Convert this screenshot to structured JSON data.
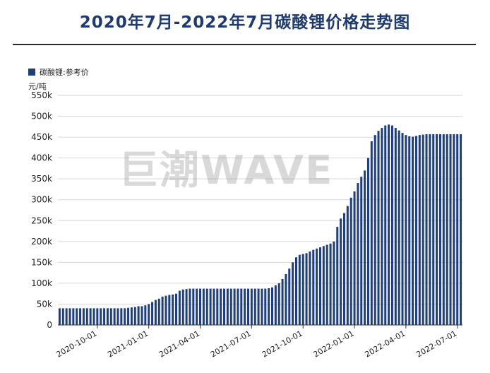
{
  "header": {
    "title": "2020年7月-2022年7月碳酸锂价格走势图"
  },
  "watermark": "巨潮WAVE",
  "chart_data": {
    "type": "bar",
    "ylabel": "元/吨",
    "ylim": [
      0,
      550000
    ],
    "y_ticks": [
      0,
      50000,
      100000,
      150000,
      200000,
      250000,
      300000,
      350000,
      400000,
      450000,
      500000,
      550000
    ],
    "y_tick_labels": [
      "0",
      "50k",
      "100k",
      "150k",
      "200k",
      "250k",
      "300k",
      "350k",
      "400k",
      "450k",
      "500k",
      "550k"
    ],
    "x_tick_labels": [
      "2020-10-01",
      "2021-01-01",
      "2021-04-01",
      "2021-07-01",
      "2021-10-01",
      "2022-01-01",
      "2022-04-01",
      "2022-07-01"
    ],
    "x_tick_positions": [
      11,
      26,
      41,
      56,
      71,
      86,
      101,
      116
    ],
    "grid": "horizontal",
    "legend_position": "top-left",
    "bar_color": "#1f3f7a",
    "series": [
      {
        "name": "碳酸锂:参考价",
        "values": [
          40000,
          40000,
          40000,
          40000,
          40000,
          40000,
          40000,
          40000,
          40000,
          40000,
          40000,
          40000,
          40000,
          40000,
          40000,
          40000,
          40000,
          40000,
          40000,
          40000,
          41000,
          42000,
          43000,
          45000,
          45000,
          47000,
          50000,
          55000,
          60000,
          63000,
          68000,
          70000,
          72000,
          73000,
          75000,
          82000,
          85000,
          86000,
          87000,
          87000,
          87000,
          87000,
          87000,
          87000,
          87000,
          87000,
          87000,
          87000,
          87000,
          87000,
          87000,
          87000,
          87000,
          87000,
          87000,
          87000,
          87000,
          87000,
          87000,
          87000,
          87000,
          88000,
          90000,
          95000,
          100000,
          110000,
          122000,
          135000,
          150000,
          162000,
          168000,
          170000,
          172000,
          176000,
          180000,
          183000,
          186000,
          189000,
          192000,
          195000,
          200000,
          235000,
          255000,
          268000,
          285000,
          305000,
          320000,
          340000,
          355000,
          370000,
          400000,
          440000,
          455000,
          465000,
          472000,
          478000,
          480000,
          478000,
          472000,
          466000,
          460000,
          455000,
          452000,
          451000,
          453000,
          455000,
          456000,
          457000,
          457000,
          457000,
          457000,
          457000,
          457000,
          457000,
          457000,
          457000,
          457000,
          457000
        ]
      }
    ]
  }
}
